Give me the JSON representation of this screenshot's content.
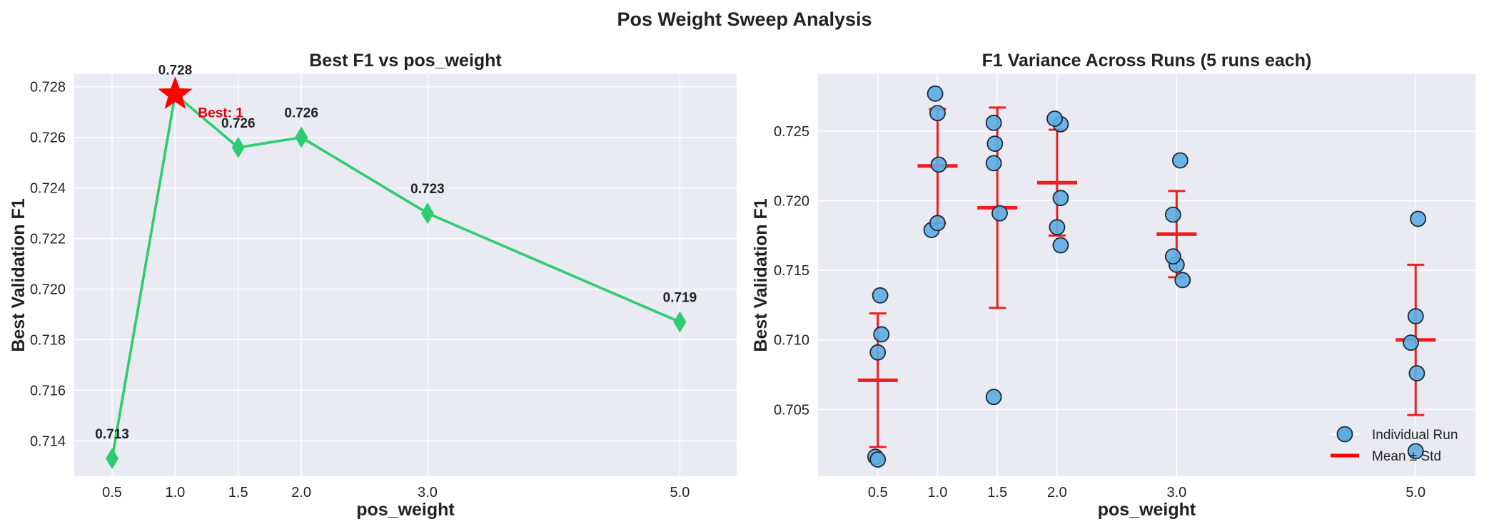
{
  "figure_title": "Pos Weight Sweep Analysis",
  "colors": {
    "line": "#2ecc71",
    "star": "#ff0000",
    "best_text": "#e00000",
    "point_fill": "#5dade2",
    "point_edge": "#1c2833",
    "errbar": "#f01e1e",
    "panel_bg": "#eaeaf2",
    "grid": "#ffffff"
  },
  "chart_data": [
    {
      "type": "line",
      "title": "Best F1 vs pos_weight",
      "xlabel": "pos_weight",
      "ylabel": "Best Validation F1",
      "x_tick_labels": [
        "0.5",
        "1.0",
        "1.5",
        "2.0",
        "3.0",
        "5.0"
      ],
      "x": [
        0.5,
        1.0,
        1.5,
        2.0,
        3.0,
        5.0
      ],
      "values": [
        0.7133,
        0.7277,
        0.7256,
        0.726,
        0.723,
        0.7187
      ],
      "data_labels": [
        "0.713",
        "0.728",
        "0.726",
        "0.726",
        "0.723",
        "0.719"
      ],
      "y_ticks": [
        0.714,
        0.716,
        0.718,
        0.72,
        0.722,
        0.724,
        0.726,
        0.728
      ],
      "y_tick_labels": [
        "0.714",
        "0.716",
        "0.718",
        "0.720",
        "0.722",
        "0.724",
        "0.726",
        "0.728"
      ],
      "ylim": [
        0.7126,
        0.7285
      ],
      "grid": true,
      "best_annotation": "Best: 1",
      "best_index": 1,
      "marker": "diamond"
    },
    {
      "type": "scatter",
      "title": "F1 Variance Across Runs (5 runs each)",
      "xlabel": "pos_weight",
      "ylabel": "Best Validation F1",
      "x_tick_labels": [
        "0.5",
        "1.0",
        "1.5",
        "2.0",
        "3.0",
        "5.0"
      ],
      "x": [
        0.5,
        1.0,
        1.5,
        2.0,
        3.0,
        5.0
      ],
      "y_ticks": [
        0.705,
        0.71,
        0.715,
        0.72,
        0.725
      ],
      "y_tick_labels": [
        "0.705",
        "0.710",
        "0.715",
        "0.720",
        "0.725"
      ],
      "ylim": [
        0.7002,
        0.7291
      ],
      "grid": true,
      "runs": [
        [
          {
            "dx": -0.02,
            "y": 0.7016
          },
          {
            "dx": 0.0,
            "y": 0.7014
          },
          {
            "dx": 0.0,
            "y": 0.7091
          },
          {
            "dx": 0.03,
            "y": 0.7104
          },
          {
            "dx": 0.02,
            "y": 0.7132
          }
        ],
        [
          {
            "dx": -0.05,
            "y": 0.7179
          },
          {
            "dx": 0.0,
            "y": 0.7184
          },
          {
            "dx": 0.01,
            "y": 0.7226
          },
          {
            "dx": 0.0,
            "y": 0.7263
          },
          {
            "dx": -0.02,
            "y": 0.7277
          }
        ],
        [
          {
            "dx": -0.03,
            "y": 0.7059
          },
          {
            "dx": 0.02,
            "y": 0.7191
          },
          {
            "dx": -0.03,
            "y": 0.7227
          },
          {
            "dx": -0.02,
            "y": 0.7241
          },
          {
            "dx": -0.03,
            "y": 0.7256
          }
        ],
        [
          {
            "dx": 0.03,
            "y": 0.7168
          },
          {
            "dx": 0.0,
            "y": 0.7181
          },
          {
            "dx": 0.03,
            "y": 0.7202
          },
          {
            "dx": 0.03,
            "y": 0.7255
          },
          {
            "dx": -0.02,
            "y": 0.7259
          }
        ],
        [
          {
            "dx": 0.05,
            "y": 0.7143
          },
          {
            "dx": 0.0,
            "y": 0.7154
          },
          {
            "dx": -0.03,
            "y": 0.716
          },
          {
            "dx": -0.03,
            "y": 0.719
          },
          {
            "dx": 0.03,
            "y": 0.7229
          }
        ],
        [
          {
            "dx": 0.0,
            "y": 0.702
          },
          {
            "dx": 0.01,
            "y": 0.7076
          },
          {
            "dx": -0.04,
            "y": 0.7098
          },
          {
            "dx": 0.0,
            "y": 0.7117
          },
          {
            "dx": 0.02,
            "y": 0.7187
          }
        ]
      ],
      "means": [
        0.7071,
        0.7225,
        0.7195,
        0.7213,
        0.7176,
        0.71
      ],
      "stds": [
        0.0048,
        0.0041,
        0.0072,
        0.0038,
        0.0031,
        0.0054
      ],
      "legend": {
        "position": "bottom-right",
        "entries": [
          "Individual Run",
          "Mean ± Std"
        ]
      }
    }
  ]
}
